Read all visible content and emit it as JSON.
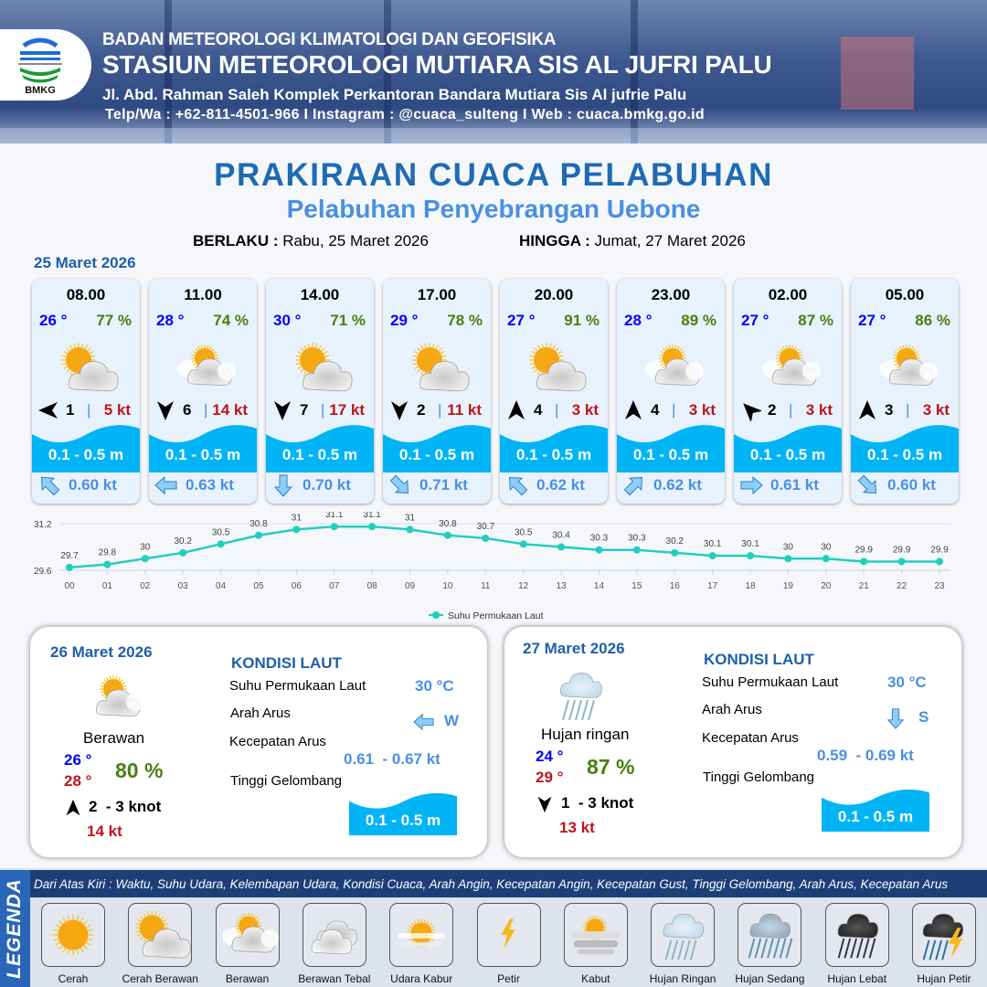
{
  "header": {
    "logo_text": "BMKG",
    "agency": "BADAN METEOROLOGI KLIMATOLOGI DAN GEOFISIKA",
    "station": "STASIUN METEOROLOGI MUTIARA SIS AL JUFRI PALU",
    "address": "Jl. Abd. Rahman Saleh Komplek Perkantoran Bandara Mutiara Sis Al jufrie Palu",
    "contact": "Telp/Wa : +62-811-4501-966  I  Instagram : @cuaca_sulteng  I  Web : cuaca.bmkg.go.id"
  },
  "title": "PRAKIRAAN CUACA PELABUHAN",
  "subtitle": "Pelabuhan Penyebrangan Uebone",
  "validity": {
    "from_label": "BERLAKU :",
    "from": "Rabu, 25 Maret 2026",
    "to_label": "HINGGA :",
    "to": "Jumat, 27 Maret 2026"
  },
  "day1": {
    "date": "25 Maret 2026",
    "cards": [
      {
        "time": "08.00",
        "temp": "26 °",
        "hum": "77 %",
        "weather": "cerah-berawan",
        "wind_dir_deg": 270,
        "wind": "1",
        "gust": "5 kt",
        "wave": "0.1 - 0.5 m",
        "current_dir_deg": 315,
        "current": "0.60 kt"
      },
      {
        "time": "11.00",
        "temp": "28 °",
        "hum": "74 %",
        "weather": "berawan",
        "wind_dir_deg": 180,
        "wind": "6",
        "gust": "14 kt",
        "wave": "0.1 - 0.5 m",
        "current_dir_deg": 270,
        "current": "0.63 kt"
      },
      {
        "time": "14.00",
        "temp": "30 °",
        "hum": "71 %",
        "weather": "cerah-berawan",
        "wind_dir_deg": 180,
        "wind": "7",
        "gust": "17 kt",
        "wave": "0.1 - 0.5 m",
        "current_dir_deg": 180,
        "current": "0.70 kt"
      },
      {
        "time": "17.00",
        "temp": "29 °",
        "hum": "78 %",
        "weather": "cerah-berawan",
        "wind_dir_deg": 180,
        "wind": "2",
        "gust": "11 kt",
        "wave": "0.1 - 0.5 m",
        "current_dir_deg": 135,
        "current": "0.71 kt"
      },
      {
        "time": "20.00",
        "temp": "27 °",
        "hum": "91 %",
        "weather": "cerah-berawan",
        "wind_dir_deg": 0,
        "wind": "4",
        "gust": "3 kt",
        "wave": "0.1 - 0.5 m",
        "current_dir_deg": 315,
        "current": "0.62 kt"
      },
      {
        "time": "23.00",
        "temp": "28 °",
        "hum": "89 %",
        "weather": "berawan",
        "wind_dir_deg": 0,
        "wind": "4",
        "gust": "3 kt",
        "wave": "0.1 - 0.5 m",
        "current_dir_deg": 45,
        "current": "0.62 kt"
      },
      {
        "time": "02.00",
        "temp": "27 °",
        "hum": "87 %",
        "weather": "berawan",
        "wind_dir_deg": 315,
        "wind": "2",
        "gust": "3 kt",
        "wave": "0.1 - 0.5 m",
        "current_dir_deg": 90,
        "current": "0.61 kt"
      },
      {
        "time": "05.00",
        "temp": "27 °",
        "hum": "86 %",
        "weather": "berawan",
        "wind_dir_deg": 0,
        "wind": "3",
        "gust": "3 kt",
        "wave": "0.1 - 0.5 m",
        "current_dir_deg": 135,
        "current": "0.60 kt"
      }
    ]
  },
  "chart_data": {
    "type": "line",
    "categories": [
      "00",
      "01",
      "02",
      "03",
      "04",
      "05",
      "06",
      "07",
      "08",
      "09",
      "10",
      "11",
      "12",
      "13",
      "14",
      "15",
      "16",
      "17",
      "18",
      "19",
      "20",
      "21",
      "22",
      "23"
    ],
    "series": [
      {
        "name": "Suhu Permukaan Laut",
        "values": [
          29.7,
          29.8,
          30.0,
          30.2,
          30.5,
          30.8,
          31.0,
          31.1,
          31.1,
          31.0,
          30.8,
          30.7,
          30.5,
          30.4,
          30.3,
          30.3,
          30.2,
          30.1,
          30.1,
          30.0,
          30.0,
          29.9,
          29.9,
          29.9
        ],
        "color": "#1fcfbf"
      }
    ],
    "yticks": [
      "31.2",
      "29.6"
    ],
    "ylim": [
      29.6,
      31.2
    ],
    "grid": true,
    "legend": "bottom",
    "data_labels": true
  },
  "days": [
    {
      "date": "26 Maret 2026",
      "weather": "berawan",
      "weather_label": "Berawan",
      "tmin": "26 °",
      "tmax": "28 °",
      "hum": "80 %",
      "wind_dir_deg": 0,
      "wind": "2  - 3 knot",
      "gust": "14 kt",
      "sea_title": "KONDISI LAUT",
      "sst_label": "Suhu Permukaan Laut",
      "sst": "30 °C",
      "dir_label": "Arah Arus",
      "current_dir_deg": 270,
      "current_dir": "W",
      "speed_label": "Kecepatan Arus",
      "speed": "0.61  - 0.67 kt",
      "wave_label": "Tinggi Gelombang",
      "wave": "0.1 - 0.5 m"
    },
    {
      "date": "27 Maret 2026",
      "weather": "hujan-ringan",
      "weather_label": "Hujan ringan",
      "tmin": "24 °",
      "tmax": "29 °",
      "hum": "87 %",
      "wind_dir_deg": 180,
      "wind": "1  - 3 knot",
      "gust": "13 kt",
      "sea_title": "KONDISI LAUT",
      "sst_label": "Suhu Permukaan Laut",
      "sst": "30 °C",
      "dir_label": "Arah Arus",
      "current_dir_deg": 180,
      "current_dir": "S",
      "speed_label": "Kecepatan Arus",
      "speed": "0.59  - 0.69 kt",
      "wave_label": "Tinggi Gelombang",
      "wave": "0.1 - 0.5 m"
    }
  ],
  "legend": {
    "side_label": "LEGENDA",
    "description": "Dari Atas Kiri : Waktu, Suhu Udara, Kelembapan Udara, Kondisi Cuaca, Arah Angin, Kecepatan Angin, Kecepatan Gust, Tinggi Gelombang, Arah Arus, Kecepatan Arus",
    "items": [
      {
        "icon": "cerah",
        "label": "Cerah"
      },
      {
        "icon": "cerah-berawan",
        "label": "Cerah Berawan"
      },
      {
        "icon": "berawan",
        "label": "Berawan"
      },
      {
        "icon": "berawan-tebal",
        "label": "Berawan Tebal"
      },
      {
        "icon": "udara-kabur",
        "label": "Udara Kabur"
      },
      {
        "icon": "petir",
        "label": "Petir"
      },
      {
        "icon": "kabut",
        "label": "Kabut"
      },
      {
        "icon": "hujan-ringan",
        "label": "Hujan Ringan"
      },
      {
        "icon": "hujan-sedang",
        "label": "Hujan Sedang"
      },
      {
        "icon": "hujan-lebat",
        "label": "Hujan Lebat"
      },
      {
        "icon": "hujan-petir",
        "label": "Hujan Petir"
      }
    ]
  },
  "colors": {
    "title": "#1f6bb3",
    "subtitle": "#4a90e2",
    "temp": "#0000ff",
    "humidity": "#4a7f10",
    "gust": "#c0141c",
    "wave": "#00b4f5",
    "current": "#4a90e2",
    "legend_bar": "#1c3f78"
  }
}
